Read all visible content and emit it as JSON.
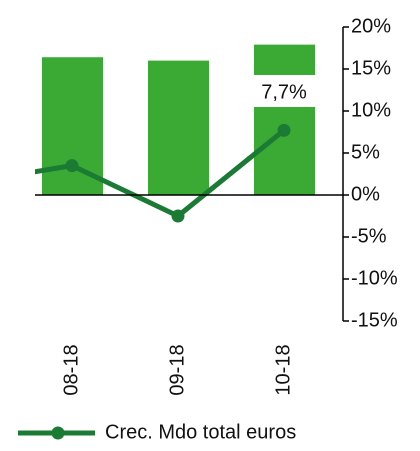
{
  "chart_data": {
    "type": "bar-line",
    "categories": [
      null,
      "08-18",
      "09-18",
      "10-18"
    ],
    "bars": {
      "color": "#3aaa35",
      "values": [
        null,
        16.4,
        16.0,
        17.9
      ]
    },
    "series": [
      {
        "name": "Crec. Mdo total euros",
        "color": "#1b7a33",
        "values": [
          1.4,
          3.5,
          -2.5,
          7.7
        ],
        "value_labels": [
          null,
          null,
          null,
          "7,7%"
        ]
      }
    ],
    "ylim": [
      -15,
      20
    ],
    "yticks": [
      {
        "value": -15,
        "label": "-15%"
      },
      {
        "value": -10,
        "label": "-10%"
      },
      {
        "value": -5,
        "label": "-5%"
      },
      {
        "value": 0,
        "label": "0%"
      },
      {
        "value": 5,
        "label": "5%"
      },
      {
        "value": 10,
        "label": "10%"
      },
      {
        "value": 15,
        "label": "15%"
      },
      {
        "value": 20,
        "label": "20%"
      }
    ],
    "legend": "bottom"
  }
}
